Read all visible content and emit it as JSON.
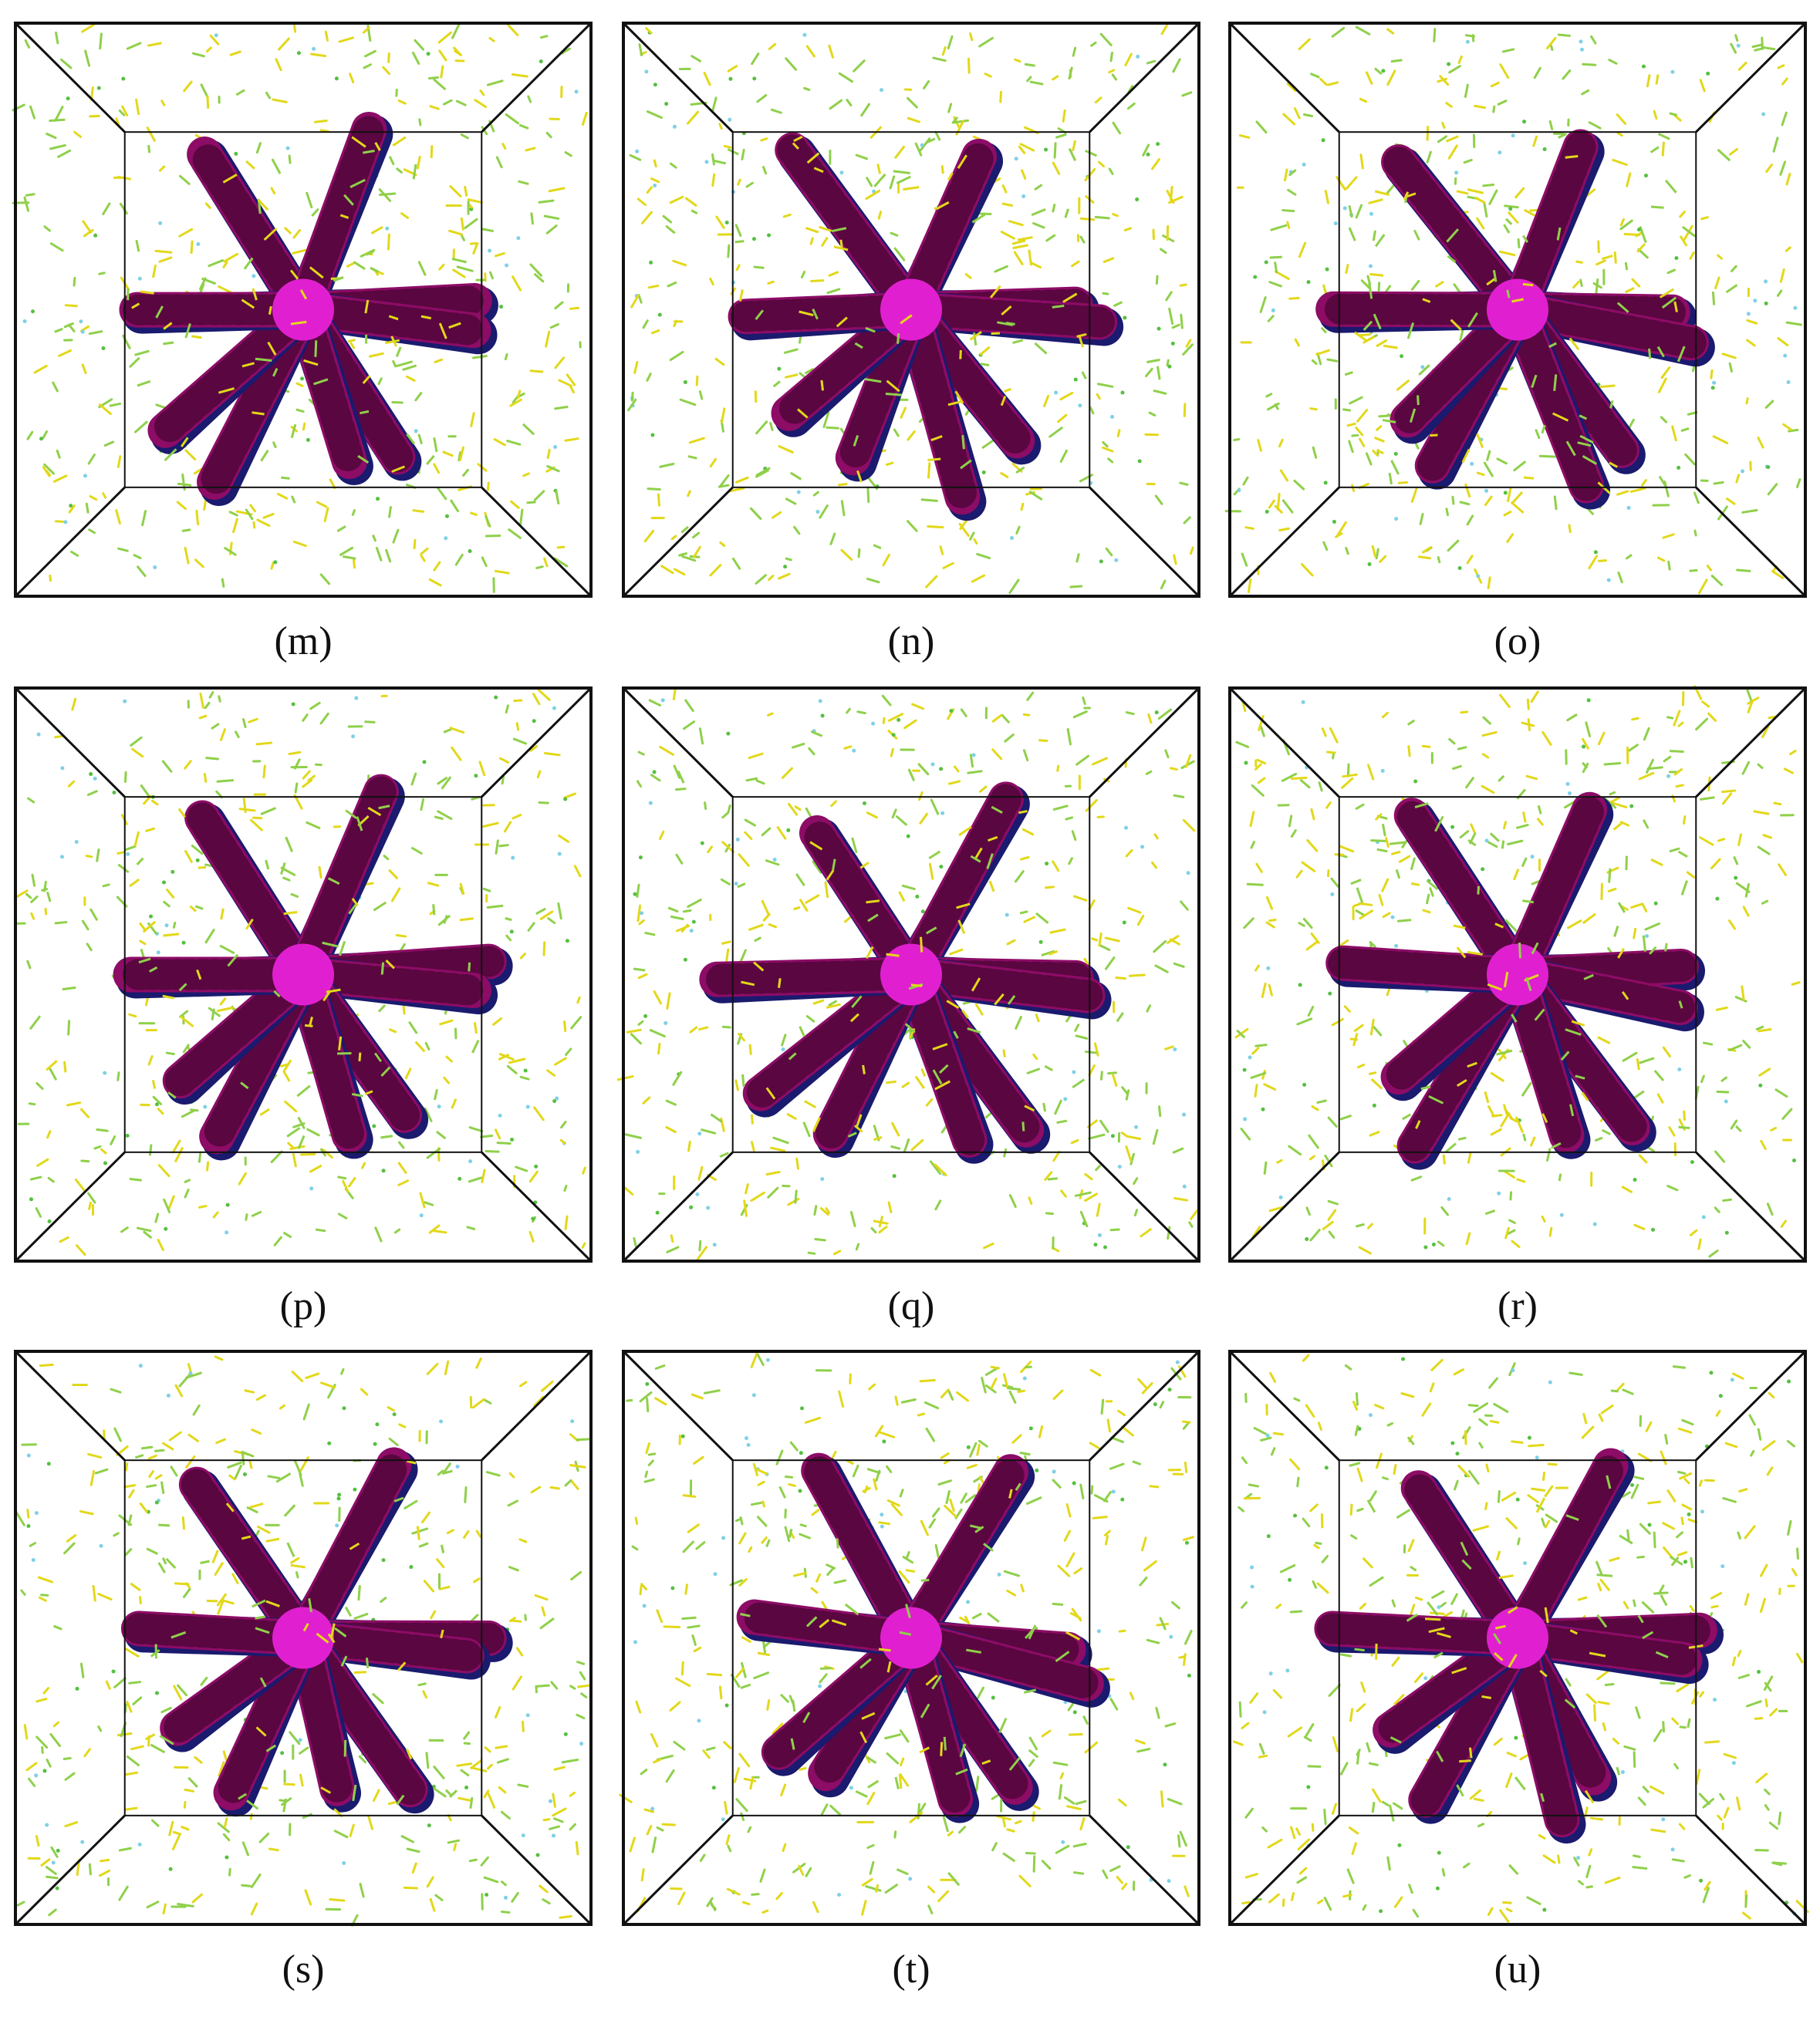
{
  "panels": [
    {
      "label": "(m)"
    },
    {
      "label": "(n)"
    },
    {
      "label": "(o)"
    },
    {
      "label": "(p)"
    },
    {
      "label": "(q)"
    },
    {
      "label": "(r)"
    },
    {
      "label": "(s)"
    },
    {
      "label": "(t)"
    },
    {
      "label": "(u)"
    }
  ]
}
